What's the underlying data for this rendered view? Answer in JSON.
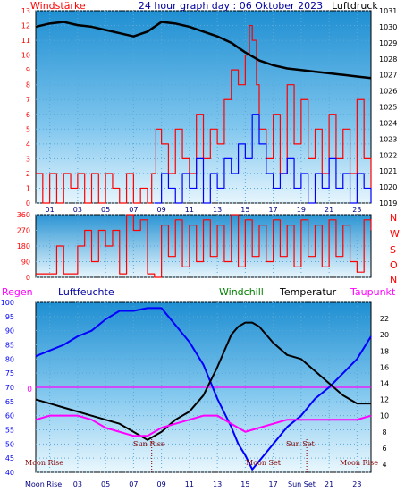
{
  "title": "24 hour graph day : 06 Oktober 2023",
  "top": {
    "left_label": "Windstärke",
    "right_label": "Luftdruck",
    "left_ticks": [
      "0",
      "1",
      "2",
      "3",
      "4",
      "5",
      "6",
      "7",
      "8",
      "9",
      "10",
      "11",
      "12",
      "13"
    ],
    "right_ticks": [
      "1019",
      "1020",
      "1021",
      "1022",
      "1023",
      "1024",
      "1025",
      "1026",
      "1027",
      "1028",
      "1029",
      "1030",
      "1031"
    ],
    "x_ticks": [
      "01",
      "03",
      "05",
      "07",
      "09",
      "11",
      "13",
      "15",
      "17",
      "19",
      "21",
      "23"
    ]
  },
  "direction": {
    "ticks": [
      "360",
      "270",
      "180",
      "90",
      "0"
    ],
    "compass": [
      "N",
      "W",
      "S",
      "O",
      "N"
    ]
  },
  "bottom": {
    "legend": {
      "rain": "Regen",
      "humidity": "Luftfeuchte",
      "windchill": "Windchill",
      "temperature": "Temperatur",
      "dewpoint": "Taupunkt"
    },
    "left_ticks": [
      "100",
      "95",
      "90",
      "85",
      "80",
      "75",
      "70",
      "65",
      "60",
      "55",
      "50",
      "45",
      "40"
    ],
    "right_ticks": [
      "22",
      "20",
      "18",
      "16",
      "14",
      "12",
      "10",
      "8",
      "6",
      "4"
    ],
    "rain_zero": "0",
    "x_ticks": [
      "01",
      "03",
      "05",
      "07",
      "09",
      "11",
      "13",
      "15",
      "17",
      "19",
      "21",
      "23"
    ],
    "events": {
      "moon_rise_a": "Moon Rise",
      "sun_rise": "Sun Rise",
      "moon_set": "Moon Set",
      "sun_set": "Sun Set",
      "moon_rise_b": "Moon Rise",
      "moon_rise_axis": "Moon Rise",
      "sun_set_axis": "Sun Set"
    }
  },
  "colors": {
    "wind": "#ff0000",
    "gust": "#0000ff",
    "pressure": "#000000",
    "humidity": "#0000ff",
    "temperature": "#000000",
    "dewpoint": "#ff00ff",
    "rain_line": "#ff00ff",
    "left_axis": "#ff0000",
    "humidity_axis": "#0000ff",
    "windchill_text": "#008000",
    "dewpoint_text": "#ff00ff"
  },
  "chart_data": [
    {
      "type": "line",
      "x_unit": "hour",
      "series": [
        {
          "key": "wind",
          "axis": "left",
          "step": true,
          "x": [
            0,
            0.5,
            1,
            1.5,
            2,
            2.5,
            3,
            3.5,
            4,
            4.5,
            5,
            5.5,
            6,
            6.5,
            7,
            7.5,
            8,
            8.3,
            8.6,
            9,
            9.5,
            10,
            10.5,
            11,
            11.5,
            12,
            12.5,
            13,
            13.5,
            14,
            14.5,
            15,
            15.3,
            15.5,
            15.8,
            16,
            16.5,
            17,
            17.5,
            18,
            18.5,
            19,
            19.5,
            20,
            20.5,
            21,
            21.5,
            22,
            22.5,
            23,
            23.5,
            24
          ],
          "y": [
            2,
            0,
            2,
            0,
            2,
            1,
            2,
            0,
            2,
            0,
            2,
            1,
            0,
            2,
            0,
            1,
            0,
            2,
            5,
            4,
            2,
            5,
            3,
            2,
            6,
            3,
            5,
            4,
            7,
            9,
            8,
            10,
            12,
            11,
            8,
            5,
            3,
            6,
            2,
            8,
            4,
            7,
            3,
            5,
            2,
            6,
            3,
            5,
            2,
            7,
            3,
            1
          ]
        },
        {
          "key": "gust",
          "axis": "left",
          "step": true,
          "x": [
            8.5,
            9,
            9.5,
            10,
            10.5,
            11,
            11.5,
            12,
            12.5,
            13,
            13.5,
            14,
            14.5,
            15,
            15.5,
            16,
            16.5,
            17,
            17.5,
            18,
            18.5,
            19,
            19.5,
            20,
            20.5,
            21,
            21.5,
            22,
            22.5,
            23,
            23.5,
            24
          ],
          "y": [
            0,
            2,
            1,
            0,
            2,
            1,
            3,
            0,
            2,
            1,
            3,
            2,
            4,
            3,
            6,
            4,
            2,
            1,
            2,
            3,
            1,
            2,
            0,
            2,
            1,
            3,
            1,
            2,
            0,
            2,
            1,
            0
          ]
        },
        {
          "key": "pressure",
          "axis": "right",
          "step": false,
          "x": [
            0,
            1,
            2,
            3,
            4,
            5,
            6,
            7,
            8,
            9,
            10,
            11,
            12,
            13,
            14,
            15,
            16,
            17,
            18,
            19,
            20,
            21,
            22,
            23,
            24
          ],
          "y": [
            1030.0,
            1030.2,
            1030.3,
            1030.1,
            1030.0,
            1029.8,
            1029.6,
            1029.4,
            1029.7,
            1030.3,
            1030.2,
            1030.0,
            1029.7,
            1029.4,
            1029.0,
            1028.4,
            1027.9,
            1027.6,
            1027.4,
            1027.3,
            1027.2,
            1027.1,
            1027.0,
            1026.9,
            1026.8
          ]
        }
      ],
      "ylim_left": [
        0,
        13
      ],
      "ylim_right": [
        1019,
        1031
      ],
      "xlim": [
        0,
        24
      ]
    },
    {
      "type": "line",
      "x_unit": "hour",
      "series": [
        {
          "key": "wind_direction",
          "step": true,
          "x": [
            0,
            1,
            1.5,
            2,
            3,
            3.5,
            4,
            4.5,
            5,
            5.5,
            6,
            6.5,
            7,
            7.5,
            8,
            8.5,
            9,
            9.5,
            10,
            10.5,
            11,
            11.5,
            12,
            12.5,
            13,
            13.5,
            14,
            14.5,
            15,
            15.5,
            16,
            16.5,
            17,
            17.5,
            18,
            18.5,
            19,
            19.5,
            20,
            20.5,
            21,
            21.5,
            22,
            22.5,
            23,
            23.5,
            24
          ],
          "y": [
            20,
            20,
            180,
            20,
            180,
            270,
            90,
            270,
            180,
            270,
            20,
            360,
            270,
            330,
            20,
            0,
            300,
            120,
            330,
            60,
            300,
            90,
            330,
            120,
            300,
            90,
            360,
            60,
            330,
            120,
            300,
            90,
            330,
            120,
            300,
            60,
            330,
            120,
            300,
            60,
            330,
            120,
            300,
            90,
            30,
            330,
            270
          ]
        }
      ],
      "ylim": [
        0,
        360
      ],
      "xlim": [
        0,
        24
      ]
    },
    {
      "type": "line",
      "x_unit": "hour",
      "series": [
        {
          "key": "humidity",
          "axis": "left",
          "x": [
            0,
            1,
            2,
            3,
            4,
            5,
            6,
            6.5,
            7,
            8,
            9,
            10,
            11,
            12,
            13,
            14,
            14.5,
            15,
            15.5,
            16,
            17,
            18,
            19,
            20,
            21,
            22,
            23,
            24
          ],
          "y": [
            81,
            83,
            85,
            88,
            90,
            94,
            97,
            97,
            97,
            98,
            98,
            92,
            86,
            78,
            66,
            56,
            50,
            46,
            41,
            44,
            50,
            56,
            60,
            66,
            70,
            75,
            80,
            88
          ]
        },
        {
          "key": "temperature",
          "axis": "right",
          "x": [
            0,
            1,
            2,
            3,
            4,
            5,
            6,
            7,
            8,
            9,
            10,
            11,
            12,
            13,
            14,
            14.5,
            15,
            15.5,
            16,
            17,
            18,
            19,
            20,
            21,
            22,
            23,
            24
          ],
          "y": [
            12.0,
            11.5,
            11.0,
            10.5,
            10.0,
            9.5,
            9.0,
            8.0,
            7.0,
            8.0,
            9.5,
            10.5,
            12.5,
            16.0,
            20.0,
            21.0,
            21.5,
            21.5,
            21.0,
            19.0,
            17.5,
            17.0,
            15.5,
            14.0,
            12.5,
            11.5,
            11.5
          ]
        },
        {
          "key": "dewpoint",
          "axis": "right",
          "x": [
            0,
            1,
            2,
            3,
            4,
            5,
            6,
            7,
            8,
            9,
            10,
            11,
            12,
            13,
            14,
            15,
            16,
            17,
            18,
            19,
            20,
            21,
            22,
            23,
            24
          ],
          "y": [
            9.5,
            10.0,
            10.0,
            10.0,
            9.5,
            8.5,
            8.0,
            7.5,
            7.5,
            8.5,
            9.0,
            9.5,
            10.0,
            10.0,
            9.0,
            8.0,
            8.5,
            9.0,
            9.5,
            9.5,
            9.5,
            9.5,
            9.5,
            9.5,
            10.0
          ]
        }
      ],
      "ylim_left": [
        40,
        100
      ],
      "ylim_right": [
        3,
        24
      ],
      "xlim": [
        0,
        24
      ]
    }
  ]
}
